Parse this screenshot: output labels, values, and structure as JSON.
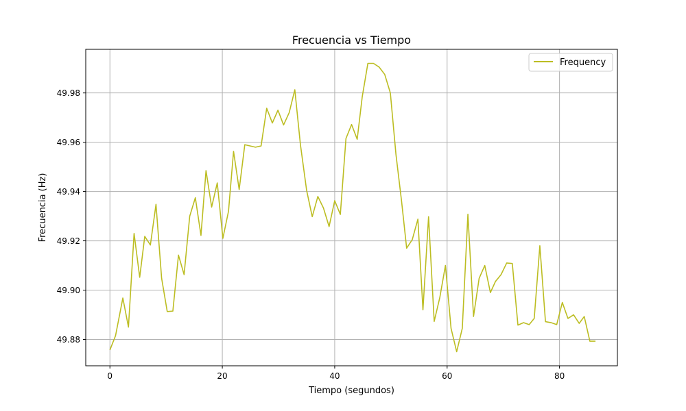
{
  "chart_data": {
    "type": "line",
    "title": "Frecuencia vs Tiempo",
    "xlabel": "Tiempo (segundos)",
    "ylabel": "Frecuencia (Hz)",
    "xlim": [
      -4.3,
      90.3
    ],
    "ylim": [
      49.8693,
      49.9977
    ],
    "xticks": [
      0,
      20,
      40,
      60,
      80
    ],
    "xtick_labels": [
      "0",
      "20",
      "40",
      "60",
      "80"
    ],
    "yticks": [
      49.88,
      49.9,
      49.92,
      49.94,
      49.96,
      49.98
    ],
    "ytick_labels": [
      "49.88",
      "49.90",
      "49.92",
      "49.94",
      "49.96",
      "49.98"
    ],
    "grid": true,
    "legend_position": "top-right",
    "series": [
      {
        "name": "Frequency",
        "color": "#bcbd22",
        "x": [
          0,
          1.0,
          2.3,
          3.3,
          4.3,
          5.3,
          6.2,
          7.2,
          8.2,
          9.2,
          10.2,
          11.2,
          12.2,
          13.2,
          14.2,
          15.2,
          16.2,
          17.1,
          18.1,
          19.1,
          20.1,
          21.1,
          22.0,
          23.0,
          24.0,
          25.9,
          26.9,
          27.9,
          28.9,
          29.9,
          30.9,
          31.9,
          32.9,
          33.9,
          35.0,
          36.0,
          37.0,
          38.0,
          39.0,
          40.0,
          41.0,
          42.0,
          43.0,
          44.0,
          44.9,
          45.9,
          46.9,
          47.9,
          48.9,
          49.9,
          50.9,
          51.9,
          52.8,
          53.8,
          54.8,
          55.7,
          56.7,
          57.7,
          58.7,
          59.7,
          60.7,
          61.7,
          62.7,
          63.7,
          64.7,
          65.7,
          66.7,
          67.7,
          68.6,
          69.6,
          70.6,
          71.6,
          72.6,
          73.6,
          74.6,
          75.5,
          76.5,
          77.5,
          78.5,
          79.5,
          80.5,
          81.5,
          82.5,
          83.5,
          84.4,
          85.4,
          86.4
        ],
        "y": [
          49.8757,
          49.8815,
          49.8968,
          49.885,
          49.923,
          49.9052,
          49.9218,
          49.9183,
          49.9348,
          49.9048,
          49.8913,
          49.8915,
          49.9142,
          49.9063,
          49.93,
          49.9375,
          49.9222,
          49.9485,
          49.9337,
          49.9435,
          49.921,
          49.932,
          49.9563,
          49.9408,
          49.959,
          49.958,
          49.9585,
          49.9738,
          49.9678,
          49.973,
          49.967,
          49.972,
          49.9813,
          49.959,
          49.9405,
          49.9298,
          49.938,
          49.9333,
          49.9258,
          49.9363,
          49.9307,
          49.9615,
          49.9672,
          49.9612,
          49.9785,
          49.992,
          49.992,
          49.9905,
          49.9875,
          49.98,
          49.955,
          49.936,
          49.917,
          49.9205,
          49.9288,
          49.892,
          49.9298,
          49.8873,
          49.897,
          49.91,
          49.8845,
          49.875,
          49.8845,
          49.9308,
          49.8893,
          49.9048,
          49.91,
          49.899,
          49.9035,
          49.9063,
          49.911,
          49.9108,
          49.8858,
          49.8868,
          49.886,
          49.8885,
          49.918,
          49.8872,
          49.8868,
          49.886,
          49.895,
          49.8885,
          49.89,
          49.8865,
          49.8893,
          49.8793,
          49.8793
        ]
      }
    ]
  }
}
